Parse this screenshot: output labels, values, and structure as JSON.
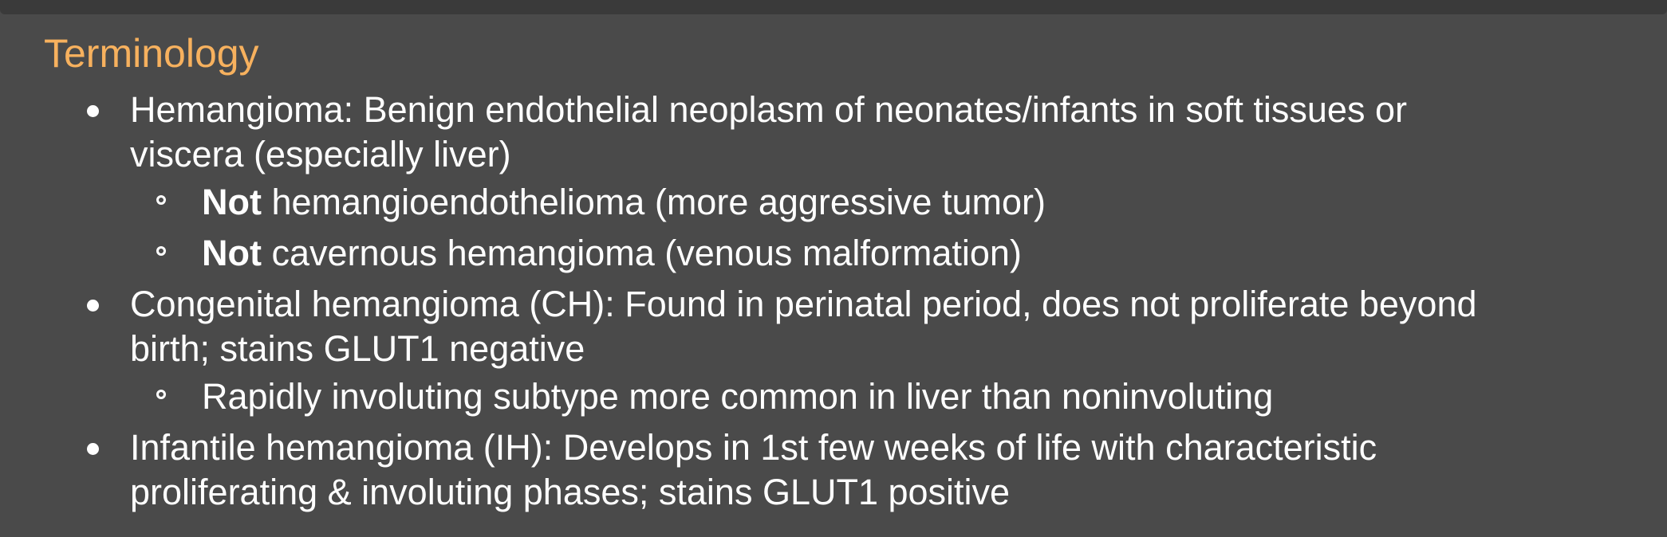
{
  "heading": "Terminology",
  "items": [
    {
      "line1": "Hemangioma: Benign endothelial neoplasm of neonates/infants in soft tissues or",
      "line2": "viscera (especially liver)",
      "subs": [
        {
          "bold": "Not",
          "text": " hemangioendothelioma (more aggressive tumor)"
        },
        {
          "bold": "Not",
          "text": " cavernous hemangioma (venous malformation)"
        }
      ]
    },
    {
      "line1": "Congenital hemangioma (CH): Found in perinatal period, does not proliferate beyond",
      "line2": "birth; stains GLUT1 negative",
      "subs": [
        {
          "text": "Rapidly involuting subtype more common in liver than noninvoluting"
        }
      ]
    },
    {
      "line1": "Infantile hemangioma (IH): Develops in 1st few weeks of life with characteristic",
      "line2": "proliferating & involuting phases; stains GLUT1 positive"
    }
  ],
  "colors": {
    "background": "#4a4a4a",
    "heading": "#f7b15e",
    "text": "#ffffff"
  }
}
